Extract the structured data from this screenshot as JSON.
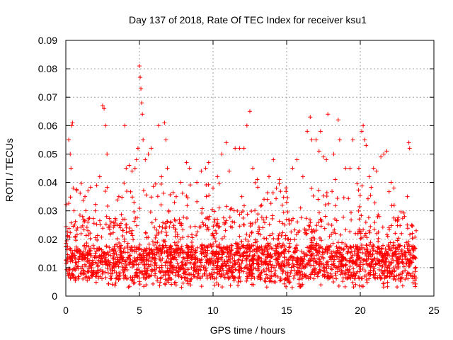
{
  "chart_data": {
    "type": "scatter",
    "title": "Day 137 of 2018, Rate Of TEC Index for receiver ksu1",
    "xlabel": "GPS time / hours",
    "ylabel": "ROTI / TECUs",
    "xlim": [
      0,
      25
    ],
    "ylim": [
      0,
      0.09
    ],
    "x_ticks": [
      "0",
      "5",
      "10",
      "15",
      "20",
      "25"
    ],
    "x_tick_values": [
      0,
      5,
      10,
      15,
      20,
      25
    ],
    "y_ticks": [
      "0",
      "0.01",
      "0.02",
      "0.03",
      "0.04",
      "0.05",
      "0.06",
      "0.07",
      "0.08",
      "0.09"
    ],
    "y_tick_values": [
      0,
      0.01,
      0.02,
      0.03,
      0.04,
      0.05,
      0.06,
      0.07,
      0.08,
      0.09
    ],
    "grid": true,
    "marker": "plus",
    "color": "#ff0000",
    "data_x_range": [
      0,
      23.8
    ],
    "series": [
      {
        "values": [
          [
            0.1,
            0.012
          ],
          [
            0.2,
            0.055
          ],
          [
            0.3,
            0.05
          ],
          [
            0.35,
            0.045
          ],
          [
            0.4,
            0.06
          ],
          [
            0.45,
            0.061
          ],
          [
            0.5,
            0.038
          ],
          [
            0.55,
            0.03
          ],
          [
            0.6,
            0.025
          ],
          [
            1.2,
            0.027
          ],
          [
            1.3,
            0.035
          ],
          [
            1.5,
            0.023
          ],
          [
            2.0,
            0.03
          ],
          [
            2.3,
            0.042
          ],
          [
            2.5,
            0.067
          ],
          [
            2.6,
            0.066
          ],
          [
            2.7,
            0.06
          ],
          [
            2.8,
            0.05
          ],
          [
            3.0,
            0.025
          ],
          [
            3.6,
            0.035
          ],
          [
            4.0,
            0.06
          ],
          [
            4.1,
            0.045
          ],
          [
            4.3,
            0.046
          ],
          [
            4.5,
            0.044
          ],
          [
            4.7,
            0.045
          ],
          [
            4.8,
            0.048
          ],
          [
            4.9,
            0.052
          ],
          [
            5.0,
            0.081
          ],
          [
            5.05,
            0.077
          ],
          [
            5.1,
            0.073
          ],
          [
            5.15,
            0.068
          ],
          [
            5.2,
            0.064
          ],
          [
            5.25,
            0.055
          ],
          [
            5.4,
            0.048
          ],
          [
            5.6,
            0.05
          ],
          [
            5.8,
            0.052
          ],
          [
            6.3,
            0.06
          ],
          [
            6.5,
            0.042
          ],
          [
            6.7,
            0.061
          ],
          [
            6.8,
            0.055
          ],
          [
            6.9,
            0.045
          ],
          [
            7.0,
            0.03
          ],
          [
            7.5,
            0.035
          ],
          [
            7.8,
            0.04
          ],
          [
            8.2,
            0.047
          ],
          [
            8.4,
            0.045
          ],
          [
            8.9,
            0.04
          ],
          [
            9.2,
            0.044
          ],
          [
            9.5,
            0.045
          ],
          [
            9.7,
            0.047
          ],
          [
            10.0,
            0.038
          ],
          [
            10.3,
            0.042
          ],
          [
            10.6,
            0.05
          ],
          [
            10.9,
            0.054
          ],
          [
            11.1,
            0.044
          ],
          [
            11.5,
            0.052
          ],
          [
            11.8,
            0.052
          ],
          [
            12.1,
            0.052
          ],
          [
            12.3,
            0.06
          ],
          [
            12.5,
            0.065
          ],
          [
            12.7,
            0.045
          ],
          [
            13.0,
            0.041
          ],
          [
            13.3,
            0.032
          ],
          [
            13.8,
            0.042
          ],
          [
            14.1,
            0.048
          ],
          [
            14.3,
            0.038
          ],
          [
            14.5,
            0.041
          ],
          [
            14.7,
            0.032
          ],
          [
            15.0,
            0.033
          ],
          [
            15.4,
            0.045
          ],
          [
            15.7,
            0.048
          ],
          [
            16.1,
            0.042
          ],
          [
            16.4,
            0.058
          ],
          [
            16.6,
            0.063
          ],
          [
            16.7,
            0.055
          ],
          [
            17.0,
            0.055
          ],
          [
            17.2,
            0.051
          ],
          [
            17.3,
            0.058
          ],
          [
            17.5,
            0.049
          ],
          [
            17.7,
            0.048
          ],
          [
            17.8,
            0.064
          ],
          [
            18.2,
            0.05
          ],
          [
            18.3,
            0.041
          ],
          [
            18.5,
            0.062
          ],
          [
            18.6,
            0.055
          ],
          [
            19.0,
            0.045
          ],
          [
            19.3,
            0.045
          ],
          [
            19.5,
            0.055
          ],
          [
            19.9,
            0.045
          ],
          [
            20.1,
            0.058
          ],
          [
            20.2,
            0.06
          ],
          [
            20.3,
            0.055
          ],
          [
            20.4,
            0.053
          ],
          [
            20.6,
            0.042
          ],
          [
            20.9,
            0.045
          ],
          [
            21.1,
            0.044
          ],
          [
            21.4,
            0.049
          ],
          [
            21.6,
            0.05
          ],
          [
            21.8,
            0.051
          ],
          [
            22.1,
            0.04
          ],
          [
            22.3,
            0.032
          ],
          [
            22.6,
            0.018
          ],
          [
            22.8,
            0.022
          ],
          [
            23.0,
            0.028
          ],
          [
            23.2,
            0.035
          ],
          [
            23.3,
            0.054
          ],
          [
            23.35,
            0.052
          ],
          [
            23.5,
            0.025
          ],
          [
            23.8,
            0.023
          ]
        ]
      }
    ]
  }
}
